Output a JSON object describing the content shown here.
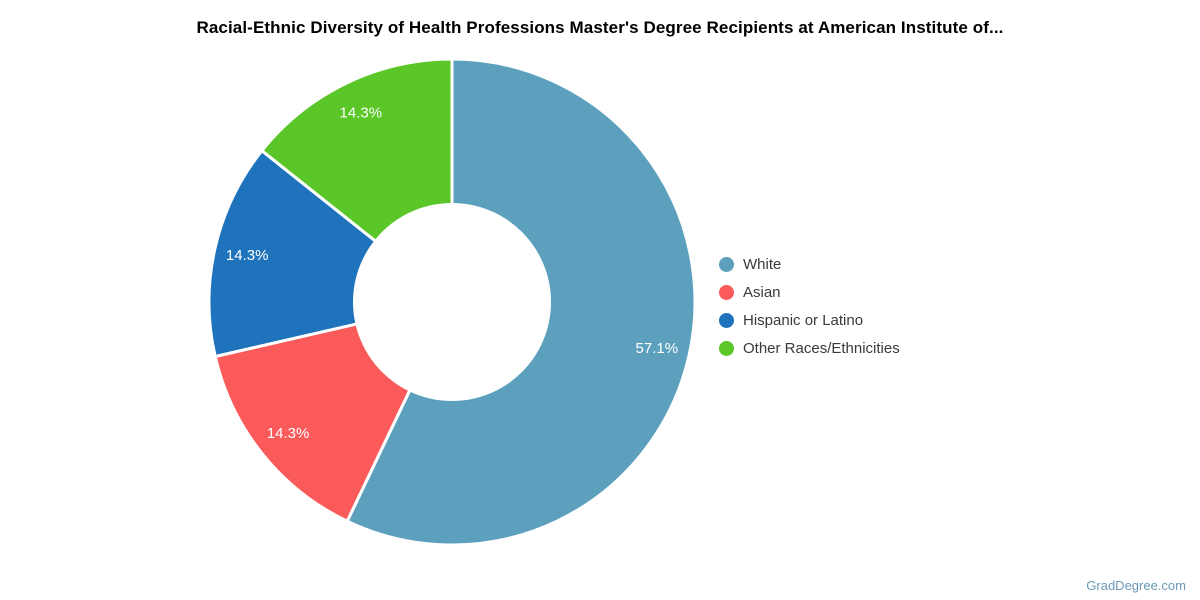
{
  "title": "Racial-Ethnic Diversity of Health Professions Master's Degree Recipients at American Institute of...",
  "footer": {
    "brand": "GradDegree.com"
  },
  "colors": {
    "background": "#ffffff",
    "title_text": "#000000",
    "legend_text": "#3a3a3a",
    "footer_text": "#6b9ab9",
    "slice_border": "#ffffff",
    "slice_label_text": "#ffffff"
  },
  "chart_data": {
    "type": "pie",
    "donut": true,
    "title": "Racial-Ethnic Diversity of Health Professions Master's Degree Recipients at American Institute of...",
    "legend_position": "right",
    "start_angle_deg": 0,
    "direction": "clockwise",
    "slices": [
      {
        "label": "White",
        "value": 57.1,
        "display": "57.1%",
        "color": "#5ca0be"
      },
      {
        "label": "Asian",
        "value": 14.3,
        "display": "14.3%",
        "color": "#fb5a5a"
      },
      {
        "label": "Hispanic or Latino",
        "value": 14.3,
        "display": "14.3%",
        "color": "#1f73bc"
      },
      {
        "label": "Other Races/Ethnicities",
        "value": 14.3,
        "display": "14.3%",
        "color": "#5ac628"
      }
    ]
  }
}
